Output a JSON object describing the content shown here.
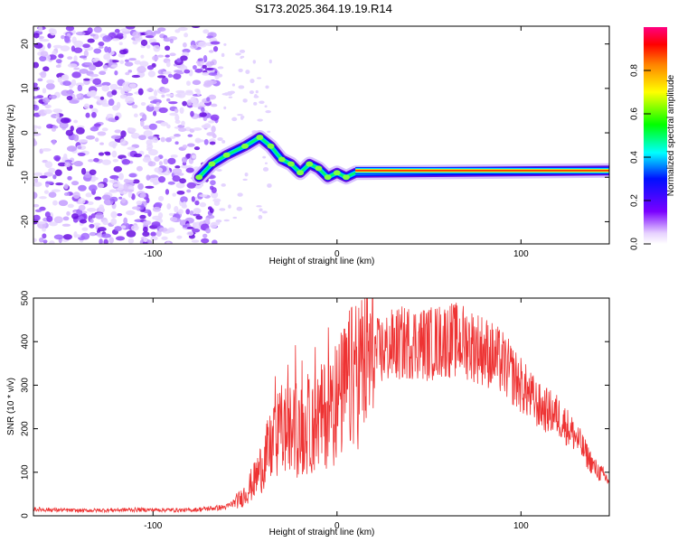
{
  "figure": {
    "title": "S173.2025.364.19.19.R14"
  },
  "chart_data": [
    {
      "type": "heatmap",
      "xlabel": "Height of straight line (km)",
      "ylabel": "Frequency (Hz)",
      "xlim": [
        -165,
        148
      ],
      "ylim": [
        -25,
        24
      ],
      "xticks": [
        -100,
        0,
        100
      ],
      "yticks": [
        20,
        10,
        0,
        -10,
        -20
      ],
      "colorbar": {
        "label": "Normalized spectral amplitude",
        "range": [
          0,
          1
        ],
        "ticks": [
          "0.0",
          "0.2",
          "0.4",
          "0.6",
          "0.8"
        ],
        "colormap": "rainbow (violet to red to magenta)"
      },
      "noise_region_x": [
        -165,
        -65
      ],
      "track": [
        {
          "x": -75,
          "y": -10
        },
        {
          "x": -68,
          "y": -7
        },
        {
          "x": -60,
          "y": -5
        },
        {
          "x": -50,
          "y": -3
        },
        {
          "x": -42,
          "y": -1
        },
        {
          "x": -36,
          "y": -3
        },
        {
          "x": -30,
          "y": -6
        },
        {
          "x": -25,
          "y": -7
        },
        {
          "x": -20,
          "y": -9
        },
        {
          "x": -15,
          "y": -7
        },
        {
          "x": -10,
          "y": -8
        },
        {
          "x": -5,
          "y": -10
        },
        {
          "x": 0,
          "y": -9
        },
        {
          "x": 5,
          "y": -10
        },
        {
          "x": 10,
          "y": -9
        },
        {
          "x": 148,
          "y": -8.5
        }
      ],
      "steady_tone": {
        "x_start": 10,
        "x_end": 148,
        "y": -8.5
      }
    },
    {
      "type": "line",
      "xlabel": "Height of straight line (km)",
      "ylabel": "SNR (10 * v/v)",
      "xlim": [
        -165,
        148
      ],
      "ylim": [
        0,
        500
      ],
      "xticks": [
        -100,
        0,
        100
      ],
      "yticks": [
        0,
        100,
        200,
        300,
        400,
        500
      ],
      "color": "#ee3333",
      "series": [
        {
          "x": [
            -165,
            -140,
            -110,
            -80,
            -60,
            -52,
            -45,
            -38,
            -30,
            -20,
            -10,
            0,
            10,
            20,
            30,
            40,
            50,
            60,
            70,
            80,
            90,
            100,
            110,
            120,
            130,
            140,
            148
          ],
          "y": [
            15,
            12,
            14,
            13,
            20,
            40,
            80,
            140,
            200,
            190,
            220,
            260,
            330,
            370,
            390,
            400,
            395,
            405,
            400,
            380,
            350,
            300,
            250,
            230,
            180,
            110,
            80
          ]
        }
      ]
    }
  ]
}
